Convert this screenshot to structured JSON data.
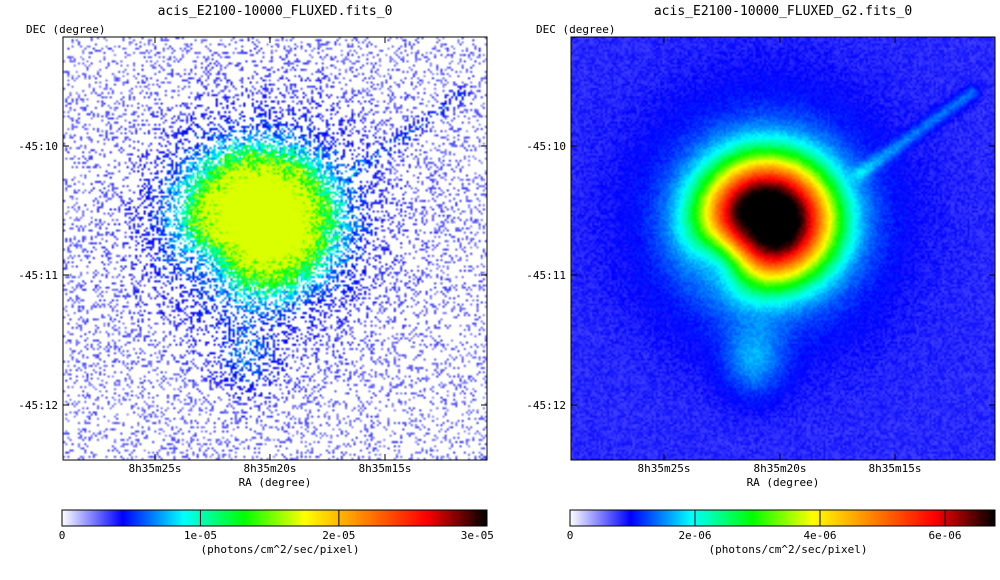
{
  "chart_data": [
    {
      "type": "heatmap",
      "title": "acis_E2100-10000_FLUXED.fits_0",
      "xlabel": "RA (degree)",
      "ylabel": "DEC (degree)",
      "x_ticks": [
        "8h35m25s",
        "8h35m20s",
        "8h35m15s"
      ],
      "y_ticks": [
        "-45:10",
        "-45:11",
        "-45:12"
      ],
      "colorbar": {
        "label": "(photons/cm^2/sec/pixel)",
        "ticks": [
          {
            "value": 0,
            "label": "0"
          },
          {
            "value": 1e-05,
            "label": "1e-05"
          },
          {
            "value": 2e-05,
            "label": "2e-05"
          },
          {
            "value": 3e-05,
            "label": "3e-05"
          }
        ],
        "range": [
          0,
          3.07e-05
        ],
        "colormap": [
          "#ffffff",
          "#0000ff",
          "#00ffff",
          "#00ff00",
          "#ffff00",
          "#ff8000",
          "#ff0000",
          "#000000"
        ]
      },
      "appearance": "noisy"
    },
    {
      "type": "heatmap",
      "title": "acis_E2100-10000_FLUXED_G2.fits_0",
      "xlabel": "RA (degree)",
      "ylabel": "DEC (degree)",
      "x_ticks": [
        "8h35m25s",
        "8h35m20s",
        "8h35m15s"
      ],
      "y_ticks": [
        "-45:10",
        "-45:11",
        "-45:12"
      ],
      "colorbar": {
        "label": "(photons/cm^2/sec/pixel)",
        "ticks": [
          {
            "value": 0,
            "label": "0"
          },
          {
            "value": 2e-06,
            "label": "2e-06"
          },
          {
            "value": 4e-06,
            "label": "4e-06"
          },
          {
            "value": 6e-06,
            "label": "6e-06"
          }
        ],
        "range": [
          0,
          6.8e-06
        ],
        "colormap": [
          "#ffffff",
          "#0000ff",
          "#00ffff",
          "#00ff00",
          "#ffff00",
          "#ff8000",
          "#ff0000",
          "#000000"
        ]
      },
      "appearance": "smoothed"
    }
  ]
}
